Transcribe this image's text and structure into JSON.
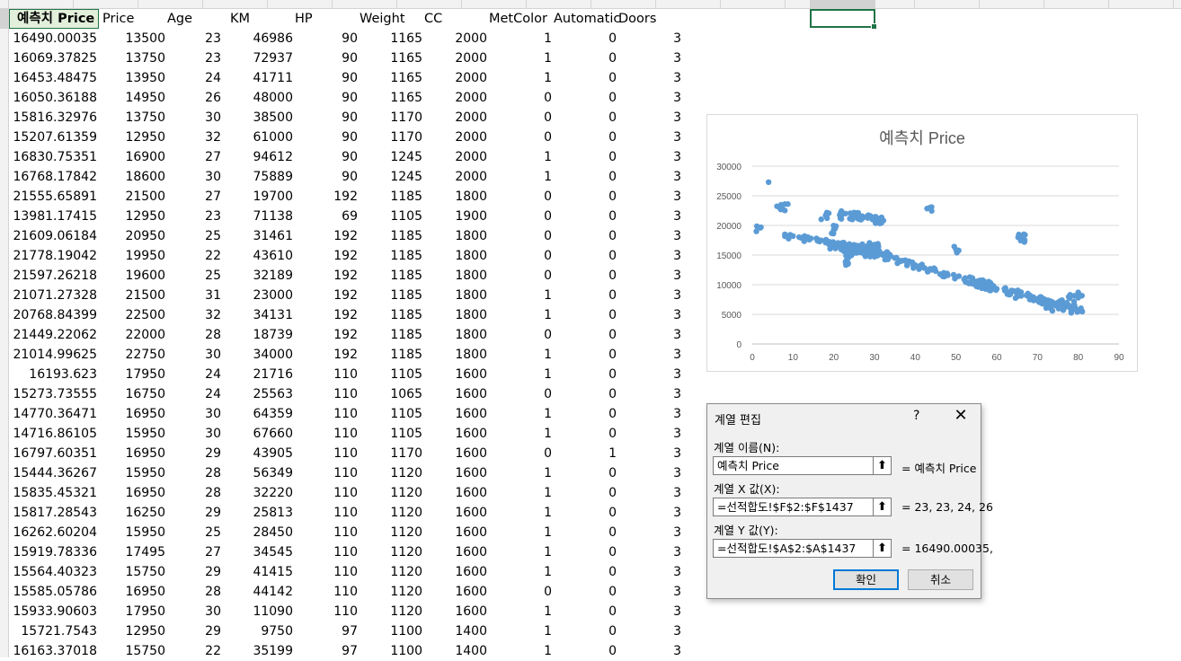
{
  "header_row": [
    "예측치 Price",
    "Price",
    "Age",
    "KM",
    "HP",
    "Weight",
    "CC",
    "MetColor",
    "Automatic",
    "Doors"
  ],
  "rows": [
    [
      "16490.00035",
      "13500",
      "23",
      "46986",
      "90",
      "1165",
      "2000",
      "1",
      "0",
      "3"
    ],
    [
      "16069.37825",
      "13750",
      "23",
      "72937",
      "90",
      "1165",
      "2000",
      "1",
      "0",
      "3"
    ],
    [
      "16453.48475",
      "13950",
      "24",
      "41711",
      "90",
      "1165",
      "2000",
      "1",
      "0",
      "3"
    ],
    [
      "16050.36188",
      "14950",
      "26",
      "48000",
      "90",
      "1165",
      "2000",
      "0",
      "0",
      "3"
    ],
    [
      "15816.32976",
      "13750",
      "30",
      "38500",
      "90",
      "1170",
      "2000",
      "0",
      "0",
      "3"
    ],
    [
      "15207.61359",
      "12950",
      "32",
      "61000",
      "90",
      "1170",
      "2000",
      "0",
      "0",
      "3"
    ],
    [
      "16830.75351",
      "16900",
      "27",
      "94612",
      "90",
      "1245",
      "2000",
      "1",
      "0",
      "3"
    ],
    [
      "16768.17842",
      "18600",
      "30",
      "75889",
      "90",
      "1245",
      "2000",
      "1",
      "0",
      "3"
    ],
    [
      "21555.65891",
      "21500",
      "27",
      "19700",
      "192",
      "1185",
      "1800",
      "0",
      "0",
      "3"
    ],
    [
      "13981.17415",
      "12950",
      "23",
      "71138",
      "69",
      "1105",
      "1900",
      "0",
      "0",
      "3"
    ],
    [
      "21609.06184",
      "20950",
      "25",
      "31461",
      "192",
      "1185",
      "1800",
      "0",
      "0",
      "3"
    ],
    [
      "21778.19042",
      "19950",
      "22",
      "43610",
      "192",
      "1185",
      "1800",
      "0",
      "0",
      "3"
    ],
    [
      "21597.26218",
      "19600",
      "25",
      "32189",
      "192",
      "1185",
      "1800",
      "0",
      "0",
      "3"
    ],
    [
      "21071.27328",
      "21500",
      "31",
      "23000",
      "192",
      "1185",
      "1800",
      "1",
      "0",
      "3"
    ],
    [
      "20768.84399",
      "22500",
      "32",
      "34131",
      "192",
      "1185",
      "1800",
      "1",
      "0",
      "3"
    ],
    [
      "21449.22062",
      "22000",
      "28",
      "18739",
      "192",
      "1185",
      "1800",
      "0",
      "0",
      "3"
    ],
    [
      "21014.99625",
      "22750",
      "30",
      "34000",
      "192",
      "1185",
      "1800",
      "1",
      "0",
      "3"
    ],
    [
      "16193.623",
      "17950",
      "24",
      "21716",
      "110",
      "1105",
      "1600",
      "1",
      "0",
      "3"
    ],
    [
      "15273.73555",
      "16750",
      "24",
      "25563",
      "110",
      "1065",
      "1600",
      "0",
      "0",
      "3"
    ],
    [
      "14770.36471",
      "16950",
      "30",
      "64359",
      "110",
      "1105",
      "1600",
      "1",
      "0",
      "3"
    ],
    [
      "14716.86105",
      "15950",
      "30",
      "67660",
      "110",
      "1105",
      "1600",
      "1",
      "0",
      "3"
    ],
    [
      "16797.60351",
      "16950",
      "29",
      "43905",
      "110",
      "1170",
      "1600",
      "0",
      "1",
      "3"
    ],
    [
      "15444.36267",
      "15950",
      "28",
      "56349",
      "110",
      "1120",
      "1600",
      "1",
      "0",
      "3"
    ],
    [
      "15835.45321",
      "16950",
      "28",
      "32220",
      "110",
      "1120",
      "1600",
      "1",
      "0",
      "3"
    ],
    [
      "15817.28543",
      "16250",
      "29",
      "25813",
      "110",
      "1120",
      "1600",
      "1",
      "0",
      "3"
    ],
    [
      "16262.60204",
      "15950",
      "25",
      "28450",
      "110",
      "1120",
      "1600",
      "1",
      "0",
      "3"
    ],
    [
      "15919.78336",
      "17495",
      "27",
      "34545",
      "110",
      "1120",
      "1600",
      "1",
      "0",
      "3"
    ],
    [
      "15564.40323",
      "15750",
      "29",
      "41415",
      "110",
      "1120",
      "1600",
      "1",
      "0",
      "3"
    ],
    [
      "15585.05786",
      "16950",
      "28",
      "44142",
      "110",
      "1120",
      "1600",
      "0",
      "0",
      "3"
    ],
    [
      "15933.90603",
      "17950",
      "30",
      "11090",
      "110",
      "1120",
      "1600",
      "1",
      "0",
      "3"
    ],
    [
      "15721.7543",
      "12950",
      "29",
      "9750",
      "97",
      "1100",
      "1400",
      "1",
      "0",
      "3"
    ],
    [
      "16163.37018",
      "15750",
      "22",
      "35199",
      "97",
      "1100",
      "1400",
      "1",
      "0",
      "3"
    ]
  ],
  "chart_data": {
    "type": "scatter",
    "title": "예측치 Price",
    "xlabel": "",
    "ylabel": "",
    "xlim": [
      0,
      90
    ],
    "ylim": [
      0,
      30000
    ],
    "x_ticks": [
      "0",
      "10",
      "20",
      "30",
      "40",
      "50",
      "60",
      "70",
      "80",
      "90"
    ],
    "y_ticks": [
      "0",
      "5000",
      "10000",
      "15000",
      "20000",
      "25000",
      "30000"
    ],
    "grid": "horizontal",
    "legend": "none",
    "color": "#5b9bd5",
    "series": [
      {
        "x": [
          23,
          23,
          24,
          26,
          30,
          32,
          27,
          30,
          27,
          23,
          25,
          22,
          25,
          31,
          32,
          28,
          30,
          24,
          24,
          30,
          30,
          29,
          28,
          28,
          29,
          25,
          27,
          29,
          28,
          30,
          29,
          22,
          1,
          2,
          4,
          7,
          8,
          8,
          10,
          12,
          14,
          16,
          18,
          19,
          20,
          21,
          23,
          24,
          26,
          27,
          29,
          31,
          33,
          35,
          36,
          38,
          40,
          42,
          44,
          45,
          47,
          48,
          50,
          52,
          54,
          55,
          57,
          58,
          60,
          62,
          63,
          65,
          66,
          68,
          70,
          71,
          72,
          74,
          75,
          76,
          77,
          78,
          79,
          80,
          80,
          80,
          79,
          78,
          76,
          73,
          69,
          64,
          56,
          50,
          44,
          66,
          34,
          20,
          18
        ],
        "y": [
          16490,
          16069,
          16453,
          16050,
          15816,
          15208,
          16831,
          16768,
          21556,
          13981,
          21609,
          21778,
          21597,
          21071,
          20769,
          21449,
          21015,
          16194,
          15274,
          14770,
          14717,
          16798,
          15444,
          15835,
          15817,
          16263,
          15920,
          15564,
          15585,
          15934,
          15722,
          16163,
          19000,
          19600,
          27300,
          22700,
          23600,
          18500,
          18200,
          17900,
          17600,
          17400,
          17100,
          16900,
          16700,
          16500,
          16300,
          16100,
          16000,
          15800,
          15600,
          15300,
          14900,
          14500,
          14100,
          13700,
          13300,
          12900,
          12500,
          12300,
          12000,
          11600,
          11300,
          10900,
          10600,
          10300,
          10000,
          9700,
          9300,
          9000,
          8700,
          8400,
          8100,
          7900,
          7600,
          7300,
          7100,
          6900,
          6700,
          6500,
          6300,
          6100,
          5900,
          5600,
          7800,
          8700,
          6600,
          8300,
          7400,
          6200,
          7900,
          8900,
          10100,
          15900,
          23100,
          17900,
          14800,
          19300,
          21700
        ]
      }
    ]
  },
  "dialog": {
    "title": "계열 편집",
    "help": "?",
    "close": "✕",
    "name_label": "계열 이름(N):",
    "name_value": "예측치 Price",
    "name_preview": "= 예측치 Price",
    "x_label": "계열 X 값(X):",
    "x_value": "=선적합도!$F$2:$F$1437",
    "x_preview": "= 23, 23, 24, 26",
    "y_label": "계열 Y 값(Y):",
    "y_value": "=선적합도!$A$2:$A$1437",
    "y_preview": "= 16490.00035,",
    "picker_glyph": "⬆",
    "ok": "확인",
    "cancel": "취소"
  }
}
